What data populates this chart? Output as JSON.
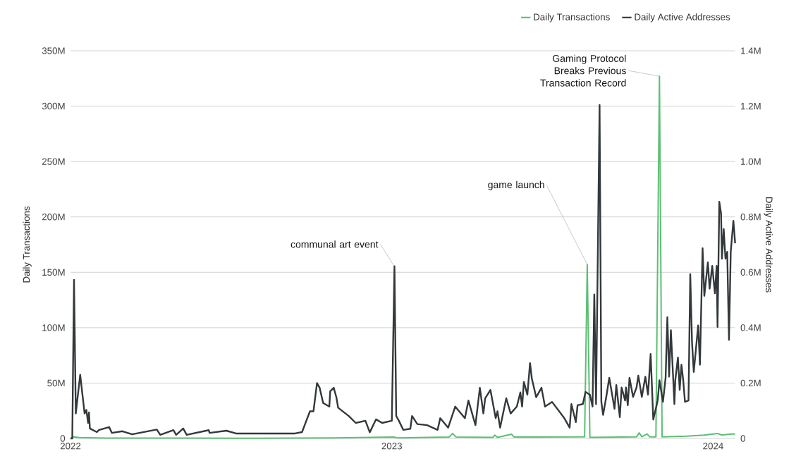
{
  "chart_data": {
    "type": "line",
    "xlabel": null,
    "ylabel": "Daily Transactions",
    "y2label": "Daily Active Addresses",
    "xlim": [
      "2022-01-01",
      "2024-01-26"
    ],
    "xticks": [
      "2022",
      "2023",
      "2024"
    ],
    "ylim": [
      0,
      350000000
    ],
    "yticks": [
      0,
      {
        "value": 50000000,
        "label": "50M"
      },
      {
        "value": 100000000,
        "label": "100M"
      },
      {
        "value": 150000000,
        "label": "150M"
      },
      {
        "value": 200000000,
        "label": "200M"
      },
      {
        "value": 250000000,
        "label": "250M"
      },
      {
        "value": 300000000,
        "label": "300M"
      },
      {
        "value": 350000000,
        "label": "350M"
      }
    ],
    "y2lim": [
      0,
      1400000
    ],
    "y2ticks": [
      0,
      {
        "value": 200000,
        "label": "0.2M"
      },
      {
        "value": 400000,
        "label": "0.4M"
      },
      {
        "value": 600000,
        "label": "0.6M"
      },
      {
        "value": 800000,
        "label": "0.8M"
      },
      {
        "value": 1000000,
        "label": "1.0M"
      },
      {
        "value": 1200000,
        "label": "1.2M"
      },
      {
        "value": 1400000,
        "label": "1.4M"
      }
    ],
    "grid": "y",
    "legend": "top right",
    "annotations": [
      {
        "text": "communal art event",
        "x": "2023-01-04",
        "y": 155000000
      },
      {
        "text": "game launch",
        "x": "2023-08-11",
        "y": 157000000
      },
      {
        "text": "Gaming Protocol Breaks Previous Transaction Record",
        "x": "2023-11-01",
        "y": 327000000
      }
    ],
    "series": [
      {
        "name": "Daily Transactions",
        "color": "#5cbf73",
        "x": [
          "2022-01-01",
          "2022-01-05",
          "2022-01-11",
          "2022-02-10",
          "2022-07-20",
          "2022-10-28",
          "2023-01-04",
          "2023-01-08",
          "2023-03-07",
          "2023-03-11",
          "2023-03-15",
          "2023-04-26",
          "2023-04-28",
          "2023-05-01",
          "2023-05-17",
          "2023-05-20",
          "2023-08-08",
          "2023-08-11",
          "2023-08-14",
          "2023-10-06",
          "2023-10-09",
          "2023-10-12",
          "2023-10-18",
          "2023-10-21",
          "2023-10-28",
          "2023-11-01",
          "2023-11-04",
          "2023-12-02",
          "2023-12-22",
          "2024-01-06",
          "2024-01-11",
          "2024-01-21",
          "2024-01-26"
        ],
        "values": [
          0,
          1500000,
          800000,
          300000,
          200000,
          500000,
          1200000,
          400000,
          1200000,
          4500000,
          1200000,
          1000000,
          3000000,
          1000000,
          3800000,
          1200000,
          1500000,
          157000000,
          1000000,
          1500000,
          5000000,
          1500000,
          4000000,
          1500000,
          1500000,
          327000000,
          1500000,
          2000000,
          3000000,
          4500000,
          3000000,
          4000000,
          4000000
        ]
      },
      {
        "name": "Daily Active Addresses",
        "color": "#33383b",
        "axis": "y2",
        "x": [
          "2022-01-01",
          "2022-01-03",
          "2022-01-05",
          "2022-01-07",
          "2022-01-12",
          "2022-01-17",
          "2022-01-19",
          "2022-01-21",
          "2022-01-22",
          "2022-01-23",
          "2022-01-31",
          "2022-02-02",
          "2022-02-14",
          "2022-02-17",
          "2022-03-01",
          "2022-03-12",
          "2022-04-09",
          "2022-04-13",
          "2022-04-28",
          "2022-05-01",
          "2022-05-09",
          "2022-05-13",
          "2022-06-07",
          "2022-06-08",
          "2022-06-27",
          "2022-07-08",
          "2022-08-06",
          "2022-09-13",
          "2022-09-21",
          "2022-09-24",
          "2022-09-30",
          "2022-10-04",
          "2022-10-08",
          "2022-10-11",
          "2022-10-15",
          "2022-10-22",
          "2022-10-23",
          "2022-10-27",
          "2022-10-30",
          "2022-11-01",
          "2022-11-13",
          "2022-11-21",
          "2022-12-02",
          "2022-12-07",
          "2022-12-14",
          "2022-12-21",
          "2023-01-01",
          "2023-01-04",
          "2023-01-06",
          "2023-01-09",
          "2023-01-14",
          "2023-01-22",
          "2023-01-24",
          "2023-01-30",
          "2023-02-10",
          "2023-02-22",
          "2023-02-25",
          "2023-03-06",
          "2023-03-14",
          "2023-03-25",
          "2023-03-29",
          "2023-04-06",
          "2023-04-11",
          "2023-04-15",
          "2023-04-17",
          "2023-04-23",
          "2023-04-29",
          "2023-05-01",
          "2023-05-04",
          "2023-05-11",
          "2023-05-16",
          "2023-05-23",
          "2023-05-27",
          "2023-05-29",
          "2023-05-31",
          "2023-06-04",
          "2023-06-07",
          "2023-06-09",
          "2023-06-14",
          "2023-06-20",
          "2023-06-24",
          "2023-07-02",
          "2023-07-16",
          "2023-07-22",
          "2023-07-24",
          "2023-07-29",
          "2023-07-31",
          "2023-08-06",
          "2023-08-09",
          "2023-08-14",
          "2023-08-17",
          "2023-08-19",
          "2023-08-21",
          "2023-08-25",
          "2023-08-27",
          "2023-08-29",
          "2023-09-02",
          "2023-09-05",
          "2023-09-11",
          "2023-09-13",
          "2023-09-17",
          "2023-09-19",
          "2023-09-23",
          "2023-09-24",
          "2023-09-26",
          "2023-09-28",
          "2023-10-02",
          "2023-10-06",
          "2023-10-08",
          "2023-10-12",
          "2023-10-16",
          "2023-10-19",
          "2023-10-22",
          "2023-10-25",
          "2023-10-30",
          "2023-11-01",
          "2023-11-05",
          "2023-11-08",
          "2023-11-10",
          "2023-11-12",
          "2023-11-14",
          "2023-11-18",
          "2023-11-19",
          "2023-11-22",
          "2023-11-24",
          "2023-11-26",
          "2023-11-28",
          "2023-11-30",
          "2023-12-04",
          "2023-12-06",
          "2023-12-08",
          "2023-12-10",
          "2023-12-15",
          "2023-12-17",
          "2023-12-20",
          "2023-12-22",
          "2023-12-26",
          "2023-12-28",
          "2023-12-31",
          "2024-01-03",
          "2024-01-05",
          "2024-01-06",
          "2024-01-08",
          "2024-01-10",
          "2024-01-11",
          "2024-01-13",
          "2024-01-15",
          "2024-01-17",
          "2024-01-19",
          "2024-01-21",
          "2024-01-24",
          "2024-01-26"
        ],
        "values": [
          0,
          0,
          573000,
          90000,
          230000,
          90000,
          103000,
          56000,
          94000,
          36000,
          23000,
          30000,
          41000,
          20000,
          26000,
          15000,
          32000,
          13000,
          30000,
          13000,
          36000,
          13000,
          30000,
          20000,
          28000,
          18000,
          18000,
          18000,
          23000,
          48000,
          98000,
          98000,
          200000,
          183000,
          128000,
          115000,
          170000,
          183000,
          149000,
          111000,
          81000,
          56000,
          64000,
          22000,
          69000,
          56000,
          64000,
          622000,
          81000,
          64000,
          31000,
          35000,
          81000,
          52000,
          48000,
          31000,
          73000,
          39000,
          115000,
          73000,
          137000,
          48000,
          183000,
          90000,
          145000,
          175000,
          73000,
          98000,
          39000,
          145000,
          90000,
          115000,
          166000,
          115000,
          204000,
          158000,
          272000,
          217000,
          149000,
          183000,
          115000,
          132000,
          73000,
          39000,
          124000,
          59000,
          120000,
          124000,
          168000,
          158000,
          115000,
          520000,
          124000,
          1204000,
          132000,
          85000,
          158000,
          219000,
          107000,
          193000,
          77000,
          184000,
          137000,
          184000,
          120000,
          219000,
          150000,
          184000,
          227000,
          150000,
          223000,
          158000,
          305000,
          68000,
          137000,
          210000,
          132000,
          219000,
          438000,
          223000,
          391000,
          124000,
          210000,
          292000,
          175000,
          266000,
          210000,
          132000,
          137000,
          593000,
          348000,
          240000,
          408000,
          266000,
          687000,
          515000,
          636000,
          541000,
          623000,
          524000,
          623000,
          403000,
          855000,
          812000,
          649000,
          756000,
          649000,
          674000,
          356000,
          674000,
          786000,
          705000
        ]
      }
    ]
  }
}
